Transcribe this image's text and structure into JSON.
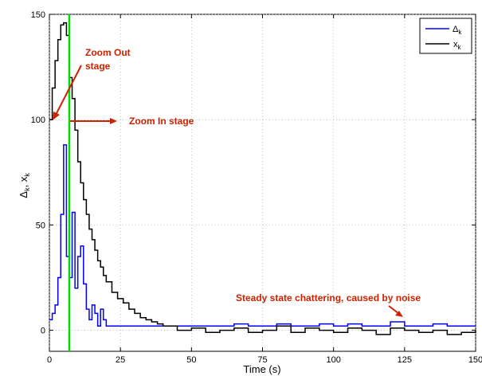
{
  "chart_data": {
    "type": "line",
    "title": "",
    "xlabel": "Time (s)",
    "ylabel_main": "Δ",
    "ylabel_sub1": "k",
    "ylabel_mid": ", x",
    "ylabel_sub2": "k",
    "xlim": [
      0,
      150
    ],
    "ylim": [
      -10,
      150
    ],
    "xticks": [
      0,
      25,
      50,
      75,
      100,
      125,
      150
    ],
    "yticks": [
      0,
      50,
      100,
      150
    ],
    "grid": true,
    "legend_position": "top-right",
    "series": [
      {
        "name": "Δ",
        "name_sub": "k",
        "color": "#0000ff",
        "step": true,
        "x": [
          0,
          1,
          2,
          3,
          4,
          5,
          6,
          7,
          8,
          9,
          10,
          11,
          12,
          13,
          14,
          15,
          16,
          17,
          18,
          19,
          20,
          21,
          22,
          23,
          24,
          25,
          30,
          35,
          40,
          45,
          50,
          55,
          60,
          65,
          70,
          75,
          80,
          85,
          90,
          95,
          100,
          105,
          110,
          115,
          120,
          125,
          130,
          135,
          140,
          145,
          150
        ],
        "values": [
          5,
          8,
          12,
          25,
          55,
          88,
          35,
          25,
          56,
          20,
          35,
          40,
          22,
          10,
          5,
          12,
          8,
          2,
          10,
          5,
          2,
          2,
          2,
          2,
          2,
          2,
          2,
          2,
          2,
          2,
          2,
          2,
          2,
          3,
          2,
          2,
          3,
          2,
          2,
          3,
          2,
          3,
          2,
          2,
          4,
          2,
          2,
          3,
          2,
          2,
          2
        ]
      },
      {
        "name": "x",
        "name_sub": "k",
        "color": "#000000",
        "step": true,
        "x": [
          0,
          1,
          2,
          3,
          4,
          5,
          6,
          7,
          8,
          9,
          10,
          11,
          12,
          13,
          14,
          15,
          16,
          17,
          18,
          19,
          20,
          22,
          24,
          26,
          28,
          30,
          32,
          34,
          36,
          38,
          40,
          45,
          50,
          55,
          60,
          65,
          70,
          75,
          80,
          85,
          90,
          95,
          100,
          105,
          110,
          115,
          120,
          125,
          130,
          135,
          140,
          145,
          150
        ],
        "values": [
          100,
          115,
          128,
          138,
          145,
          146,
          140,
          120,
          110,
          95,
          80,
          70,
          62,
          55,
          48,
          43,
          38,
          33,
          30,
          26,
          23,
          18,
          15,
          13,
          10,
          8,
          6,
          5,
          4,
          3,
          2,
          0,
          1,
          -1,
          0,
          1,
          -1,
          0,
          2,
          -1,
          1,
          0,
          -1,
          1,
          0,
          -2,
          1,
          0,
          -1,
          0,
          -2,
          -1,
          0
        ]
      }
    ],
    "vline": {
      "x": 7,
      "color": "#00dd00"
    },
    "annotations": [
      {
        "line1": "Zoom Out",
        "line2": "stage",
        "color": "#cc2200"
      },
      {
        "line1": "Zoom In stage",
        "color": "#cc2200"
      },
      {
        "line1": "Steady state chattering, caused by noise",
        "color": "#cc2200"
      }
    ]
  }
}
